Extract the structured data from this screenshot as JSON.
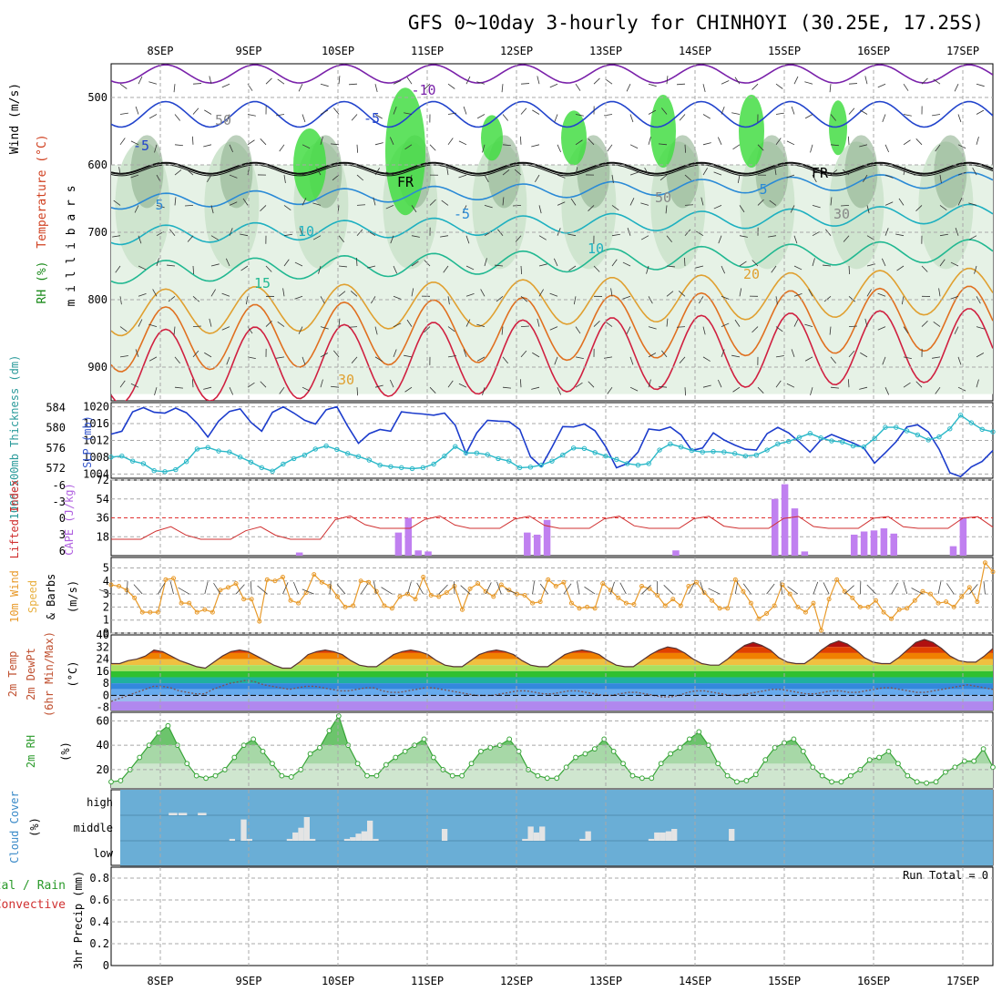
{
  "title": "GFS 0~10day 3-hourly for CHINHOYI (30.25E, 17.25S)",
  "colors": {
    "rh_fill": "#cfe5cf",
    "rh_dark": "#8fb08f",
    "rh_green": "#44dd44",
    "slp": "#1c3ccc",
    "thickness": "#2ab8c8",
    "cape": "#c080f0",
    "lifted": "#d03030",
    "wind_speed": "#e89a2a",
    "rh2m": "#37a537",
    "cloud_bg": "#6aaed6",
    "cloud_bar": "#e4e4e4",
    "grid": "#a8a8a8"
  },
  "chart_data": [
    {
      "name": "upper_air",
      "type": "heatmap",
      "label_wind": "Wind (m/s)",
      "label_temperature": "Temperature (°C)",
      "label_rh": "RH (%)",
      "ylabel": "m i l l i b a r s",
      "yticks": [
        500,
        600,
        700,
        800,
        900
      ],
      "ylim": [
        450,
        950
      ],
      "isotherm_labels": [
        "-10",
        "-5",
        "-5",
        "FR",
        "FR",
        "-5",
        "5",
        "5",
        "10",
        "10",
        "15",
        "20",
        "30",
        "50",
        "50",
        "30"
      ]
    },
    {
      "name": "slp_thickness",
      "type": "line",
      "ylabel_left": "1000-500mb Thickness (dm)",
      "ylabel_right": "SLP (mb)",
      "yticks_left": [
        "584",
        "580",
        "576",
        "572"
      ],
      "yticks_right": [
        "1020",
        "1016",
        "1012",
        "1008",
        "1004"
      ],
      "ylim_slp": [
        1003,
        1021
      ],
      "ylim_thickness": [
        570,
        585
      ],
      "slp": [
        1013.5,
        1014.2,
        1018.8,
        1019.8,
        1018.7,
        1018.5,
        1019.7,
        1018.6,
        1016.1,
        1012.8,
        1016.6,
        1018.9,
        1019.5,
        1016.3,
        1014.2,
        1018.7,
        1020,
        1018.5,
        1016.8,
        1015.9,
        1019.3,
        1020,
        1015.4,
        1011.3,
        1013.6,
        1014.6,
        1014.2,
        1018.8,
        1018.5,
        1018.3,
        1018,
        1018.5,
        1015.6,
        1008.9,
        1013.8,
        1016.8,
        1016.6,
        1016.5,
        1014.6,
        1008.1,
        1005.8,
        1010.4,
        1015.3,
        1015.2,
        1015.9,
        1014.3,
        1010.5,
        1005.5,
        1006.5,
        1009.2,
        1014.7,
        1014.4,
        1015.2,
        1013.3,
        1009.6,
        1010.2,
        1013.8,
        1012.1,
        1010.9,
        1009.9,
        1009.7,
        1013.6,
        1015.1,
        1013.8,
        1011.6,
        1009.2,
        1012.1,
        1013.4,
        1012.4,
        1011.4,
        1010.2,
        1006.6,
        1009.1,
        1011.7,
        1015.2,
        1015.7,
        1014,
        1009.9,
        1004.3,
        1003.4,
        1005.7,
        1007,
        1009.6
      ],
      "thickness": [
        574.2,
        574.4,
        573.4,
        572.9,
        571.5,
        571.3,
        571.7,
        573.3,
        575.8,
        576.1,
        575.4,
        575.2,
        574.2,
        573.2,
        572.1,
        571.4,
        572.8,
        573.9,
        574.6,
        575.8,
        576.4,
        575.7,
        574.9,
        574.3,
        573.6,
        572.6,
        572.3,
        572.1,
        571.9,
        572.1,
        572.8,
        574.4,
        576.3,
        575,
        575,
        574.7,
        573.9,
        573.4,
        572.1,
        572.2,
        572.6,
        573.4,
        574.6,
        576,
        575.9,
        575.1,
        574.4,
        573.7,
        572.9,
        572.6,
        572.9,
        575.6,
        576.8,
        576.2,
        575.5,
        575.2,
        575.3,
        575.2,
        574.9,
        574.4,
        574.6,
        575.6,
        576.8,
        577.3,
        578.1,
        578.9,
        578,
        577.4,
        577.2,
        576.4,
        576.2,
        577.9,
        580.1,
        580.1,
        579.4,
        578.6,
        577.6,
        578.2,
        579.8,
        582.5,
        581,
        579.7,
        579.2
      ]
    },
    {
      "name": "cape_lifted",
      "type": "bar",
      "ylabel_left": "Lifted Index",
      "ylabel_right": "CAPE (J/kg)",
      "yticks_left": [
        "-6",
        "-3",
        "0",
        "3",
        "6"
      ],
      "yticks_right": [
        "72",
        "54",
        "36",
        "18"
      ],
      "ylim_cape": [
        0,
        72
      ],
      "ylim_lifted": [
        -9,
        6
      ],
      "cape": [
        0,
        0,
        0,
        0,
        0,
        0,
        0,
        0,
        0,
        0,
        0,
        0,
        0,
        0,
        0,
        0,
        0,
        0,
        0,
        3,
        0,
        0,
        0,
        0,
        0,
        0,
        0,
        0,
        0,
        22,
        36,
        5,
        4,
        0,
        0,
        0,
        0,
        0,
        0,
        0,
        0,
        0,
        22,
        20,
        34,
        0,
        0,
        0,
        0,
        0,
        0,
        0,
        0,
        0,
        0,
        0,
        0,
        5,
        0,
        0,
        0,
        0,
        0,
        0,
        0,
        0,
        0,
        54,
        68,
        45,
        4,
        0,
        0,
        0,
        0,
        20,
        23,
        24,
        26,
        21,
        0,
        0,
        0,
        0,
        0,
        9,
        36,
        0,
        0,
        0
      ],
      "lifted": [
        6,
        6,
        6,
        6,
        6,
        6,
        6,
        6,
        6,
        6,
        6,
        6,
        6,
        6,
        6,
        6,
        6,
        6,
        6,
        6,
        6,
        6,
        6,
        6,
        6,
        6,
        6,
        6,
        6,
        6,
        6,
        6,
        6,
        6,
        6,
        6,
        6,
        6,
        6,
        6,
        6,
        6,
        6,
        6,
        6,
        6,
        6,
        6,
        6,
        6,
        6,
        6,
        6,
        6,
        6,
        6,
        6,
        6,
        6,
        6,
        6,
        6,
        6,
        6,
        6,
        6,
        6,
        6,
        6,
        6,
        6,
        6,
        6,
        6,
        6,
        6,
        6,
        6,
        6,
        6,
        6,
        6,
        6,
        6,
        6,
        6,
        6,
        6,
        6,
        6,
        6,
        6
      ],
      "lifted_series": [
        6,
        6,
        6,
        6,
        6,
        6,
        6,
        6,
        6,
        6,
        6,
        6,
        6,
        6,
        5.5,
        6,
        6,
        6,
        6,
        4.4,
        6,
        6,
        6,
        6,
        6,
        5,
        4.6,
        4.4,
        6,
        6,
        6,
        6,
        6,
        6,
        6,
        6,
        6,
        6,
        5,
        5.1,
        6,
        6,
        6,
        6,
        6,
        6,
        6,
        6,
        6,
        6,
        6,
        6,
        6,
        6,
        6,
        6,
        6,
        6,
        6,
        6,
        6,
        6,
        6,
        6,
        6,
        6,
        6,
        6,
        6,
        6,
        6,
        6,
        6,
        6,
        6,
        6,
        6,
        6,
        6,
        6,
        6,
        6,
        6,
        6,
        6,
        6,
        6,
        6,
        6,
        6,
        6,
        6,
        6,
        6,
        6
      ]
    },
    {
      "name": "wind10m",
      "type": "line",
      "ylabel_left": "10m Wind",
      "ylabel_mid": "Speed",
      "ylabel_right": "& Barbs",
      "ylabel_unit": "(m/s)",
      "yticks": [
        "5",
        "4",
        "3",
        "2",
        "1",
        "0"
      ],
      "ylim": [
        0,
        5.8
      ],
      "speed": [
        3.7,
        3.6,
        3.3,
        2.7,
        1.6,
        1.6,
        1.6,
        4.1,
        4.2,
        2.3,
        2.3,
        1.6,
        1.8,
        1.6,
        3.3,
        3.5,
        3.8,
        2.6,
        2.6,
        0.9,
        4.1,
        4.0,
        4.3,
        2.5,
        2.3,
        3.1,
        4.5,
        3.9,
        3.6,
        2.8,
        2.0,
        2.1,
        4.0,
        3.9,
        3.2,
        2.1,
        1.9,
        2.8,
        3.0,
        2.6,
        4.3,
        2.9,
        2.8,
        3.1,
        3.6,
        1.8,
        3.4,
        3.8,
        3.2,
        2.8,
        3.7,
        3.3,
        3.0,
        2.9,
        2.3,
        2.4,
        4.1,
        3.6,
        3.9,
        2.3,
        1.9,
        2.0,
        1.9,
        3.8,
        3.3,
        2.7,
        2.3,
        2.2,
        3.6,
        3.4,
        2.9,
        2.1,
        2.6,
        2.1,
        3.6,
        3.9,
        3.1,
        2.5,
        1.9,
        1.9,
        4.1,
        3.2,
        2.3,
        1.1,
        1.5,
        2.1,
        3.7,
        3.0,
        2.0,
        1.6,
        2.3,
        0.2,
        2.6,
        4.1,
        3.2,
        2.7,
        2.0,
        2.0,
        2.5,
        1.6,
        1.1,
        1.8,
        1.9,
        2.5,
        3.2,
        3.0,
        2.3,
        2.4,
        2.0,
        2.8,
        3.5,
        2.4,
        5.4,
        4.7
      ]
    },
    {
      "name": "temp2m",
      "type": "area",
      "ylabel": "2m Temp",
      "ylabel2": "2m DewPt",
      "ylabel3": "(6hr Min/Max)",
      "ylabel_unit": "(°C)",
      "yticks": [
        "40",
        "32",
        "24",
        "16",
        "8",
        "0",
        "-8"
      ],
      "ylim": [
        -10,
        40
      ],
      "temp": [
        21,
        21,
        23,
        24,
        26,
        30,
        29,
        26,
        23,
        21,
        19,
        18,
        22,
        26,
        29,
        30,
        29,
        26,
        23,
        20,
        18,
        18,
        22,
        27,
        29,
        30,
        29,
        27,
        23,
        20,
        19,
        19,
        23,
        27,
        29,
        30,
        29,
        27,
        23,
        20,
        19,
        19,
        23,
        27,
        29,
        30,
        29,
        27,
        23,
        20,
        19,
        19,
        23,
        27,
        29,
        30,
        29,
        27,
        23,
        20,
        19,
        19,
        23,
        27,
        30,
        32,
        31,
        28,
        24,
        21,
        20,
        20,
        24,
        29,
        33,
        35,
        33,
        30,
        25,
        22,
        21,
        21,
        25,
        30,
        34,
        36,
        34,
        30,
        25,
        22,
        21,
        21,
        25,
        30,
        35,
        37,
        35,
        31,
        26,
        23,
        22,
        22,
        26,
        31
      ],
      "dew": [
        -4,
        -2,
        0,
        2,
        4,
        6,
        6,
        5,
        3,
        2,
        1,
        1,
        4,
        6,
        8,
        9,
        10,
        9,
        7,
        6,
        5,
        4,
        5,
        6,
        6,
        5,
        4,
        3,
        3,
        4,
        5,
        5,
        3,
        2,
        2,
        3,
        4,
        5,
        5,
        4,
        3,
        2,
        1,
        0,
        0,
        0,
        1,
        2,
        3,
        3,
        2,
        1,
        1,
        2,
        3,
        3,
        2,
        1,
        0,
        0,
        1,
        2,
        2,
        1,
        0,
        -1,
        -1,
        0,
        2,
        3,
        3,
        2,
        1,
        0,
        0,
        1,
        2,
        3,
        4,
        4,
        3,
        2,
        1,
        1,
        2,
        3,
        3,
        2,
        2,
        3,
        4,
        5,
        5,
        4,
        3,
        2,
        2,
        3,
        4,
        5,
        6,
        7,
        6,
        5,
        4
      ]
    },
    {
      "name": "rh2m",
      "type": "area",
      "ylabel": "2m RH",
      "ylabel_unit": "(%)",
      "yticks": [
        "60",
        "40",
        "20"
      ],
      "ylim": [
        5,
        67
      ],
      "rh": [
        10,
        11,
        20,
        30,
        40,
        50,
        56,
        40,
        25,
        15,
        13,
        15,
        20,
        30,
        40,
        45,
        35,
        25,
        15,
        14,
        20,
        33,
        38,
        52,
        64,
        40,
        25,
        15,
        15,
        24,
        30,
        35,
        40,
        45,
        30,
        20,
        15,
        15,
        25,
        35,
        38,
        40,
        45,
        35,
        20,
        15,
        13,
        13,
        22,
        30,
        33,
        37,
        45,
        35,
        25,
        15,
        13,
        13,
        25,
        33,
        38,
        45,
        51,
        40,
        25,
        15,
        10,
        11,
        16,
        28,
        38,
        42,
        45,
        35,
        22,
        15,
        10,
        10,
        15,
        20,
        28,
        30,
        35,
        25,
        15,
        10,
        9,
        10,
        18,
        22,
        27,
        27,
        37,
        22
      ]
    },
    {
      "name": "cloud_cover",
      "type": "bar",
      "ylabel": "Cloud Cover",
      "ylabel_unit": "(%)",
      "level_labels": [
        "high",
        "middle",
        "low"
      ],
      "high": [
        0,
        0,
        0,
        0,
        0,
        10,
        10,
        0,
        10,
        0,
        0,
        0,
        0,
        0,
        0,
        0,
        0,
        0,
        0,
        0,
        0,
        0,
        0,
        0,
        0,
        0,
        0,
        0,
        0,
        0,
        0,
        0,
        0,
        0,
        0,
        0,
        0,
        0,
        0,
        0,
        0,
        0,
        0,
        0,
        0,
        0,
        0,
        0,
        0,
        0,
        0,
        0,
        0,
        0,
        0,
        0,
        0,
        0,
        0,
        0,
        0,
        0,
        0,
        0,
        0,
        0,
        0,
        0,
        0,
        0,
        0,
        0,
        0,
        0,
        0,
        0,
        0,
        0,
        0,
        0,
        0,
        0,
        0,
        0,
        0,
        0,
        0,
        0,
        0,
        0
      ],
      "middle": [
        0,
        0,
        0,
        0,
        0,
        0,
        0,
        0,
        0,
        0,
        0,
        0,
        0,
        0,
        0,
        0,
        0,
        0,
        0,
        8,
        0,
        90,
        8,
        0,
        0,
        0,
        0,
        0,
        0,
        8,
        35,
        55,
        100,
        8,
        0,
        0,
        0,
        0,
        0,
        8,
        15,
        30,
        40,
        85,
        8,
        0,
        0,
        0,
        0,
        0,
        0,
        0,
        0,
        0,
        0,
        0,
        50,
        0,
        0,
        0,
        0,
        0,
        0,
        0,
        0,
        0,
        0,
        0,
        0,
        0,
        8,
        60,
        35,
        60,
        0,
        0,
        0,
        0,
        0,
        0,
        8,
        40,
        0,
        0,
        0,
        0,
        0,
        0,
        0,
        0,
        0,
        0,
        8,
        35,
        35,
        40,
        50,
        0,
        0,
        0,
        0,
        0,
        0,
        0,
        0,
        0,
        50,
        0,
        0,
        0,
        0,
        0,
        0,
        0,
        0,
        0,
        0,
        0,
        0,
        0,
        0,
        0,
        0,
        0,
        0,
        0,
        0,
        0,
        0,
        0,
        0,
        0,
        0,
        0,
        0,
        0,
        0,
        0,
        0,
        0,
        0,
        0,
        0,
        0,
        0,
        0,
        0,
        0,
        0,
        0,
        0,
        0
      ],
      "low": [
        0,
        0,
        0,
        0,
        0,
        0,
        0,
        0,
        0,
        0,
        0,
        0,
        0,
        0,
        0,
        0,
        0,
        0,
        0,
        0,
        0,
        0,
        0,
        0,
        0,
        0,
        0,
        0,
        0,
        0,
        0,
        0,
        0,
        0,
        0,
        0,
        0,
        0,
        0,
        0,
        0,
        0,
        0,
        0,
        0,
        0,
        0,
        0,
        0,
        0,
        0,
        0,
        0,
        0,
        0,
        0,
        0,
        0,
        0,
        0,
        0,
        0,
        0,
        0,
        0,
        0,
        0,
        0,
        0,
        0,
        0,
        0,
        0,
        0,
        0,
        0,
        0,
        0,
        0,
        0,
        0,
        0,
        0,
        0,
        0,
        0,
        0,
        0,
        0,
        0
      ]
    },
    {
      "name": "precip",
      "type": "bar",
      "ylabel": "3hr Precip (mm)",
      "legend_total": "Total / Rain",
      "legend_convective": "Convective",
      "run_total": "Run Total = 0",
      "yticks": [
        "0.8",
        "0.6",
        "0.4",
        "0.2",
        "0"
      ],
      "ylim": [
        0,
        0.9
      ],
      "values": []
    }
  ],
  "x_axis": {
    "day_labels": [
      "8SEP",
      "9SEP",
      "10SEP",
      "11SEP",
      "12SEP",
      "13SEP",
      "14SEP",
      "15SEP",
      "16SEP",
      "17SEP"
    ]
  }
}
